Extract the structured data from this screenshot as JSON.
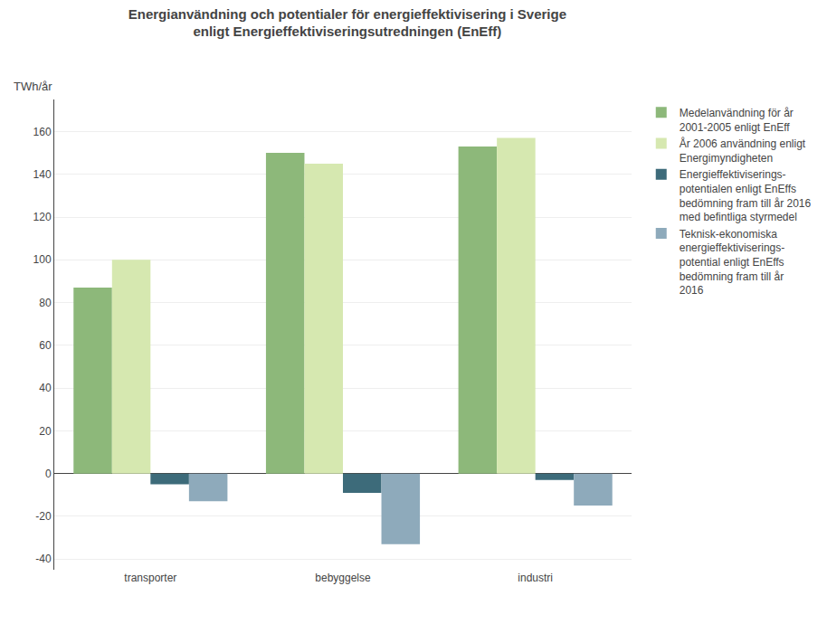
{
  "chart_data": {
    "type": "bar",
    "title": "Energianvändning och potentialer för energieffektivisering i Sverige\nenligt Energieffektiviseringsutredningen (EnEff)",
    "ylabel": "TWh/år",
    "categories": [
      "transporter",
      "bebyggelse",
      "industri"
    ],
    "series": [
      {
        "name": "Medelanvändning för år\n2001-2005 enligt EnEff",
        "color": "#8DB87A",
        "values": [
          87,
          150,
          153
        ]
      },
      {
        "name": "År 2006 användning enligt\nEnergimyndigheten",
        "color": "#D6E8B0",
        "values": [
          100,
          145,
          157
        ]
      },
      {
        "name": "Energieffektiviserings-\npotentialen enligt EnEffs\nbedömning fram till år 2016\nmed befintliga styrmedel",
        "color": "#3D6B7A",
        "values": [
          -5,
          -9,
          -3
        ]
      },
      {
        "name": "Teknisk-ekonomiska\nenergieffektiviserings-\npotential enligt EnEffs\nbedömning fram till år\n2016",
        "color": "#8EAABB",
        "values": [
          -13,
          -33,
          -15
        ]
      }
    ],
    "ylim": [
      -45,
      175
    ],
    "yticks": [
      -40,
      -20,
      0,
      20,
      40,
      60,
      80,
      100,
      120,
      140,
      160
    ],
    "grid": true,
    "legend": "right"
  }
}
